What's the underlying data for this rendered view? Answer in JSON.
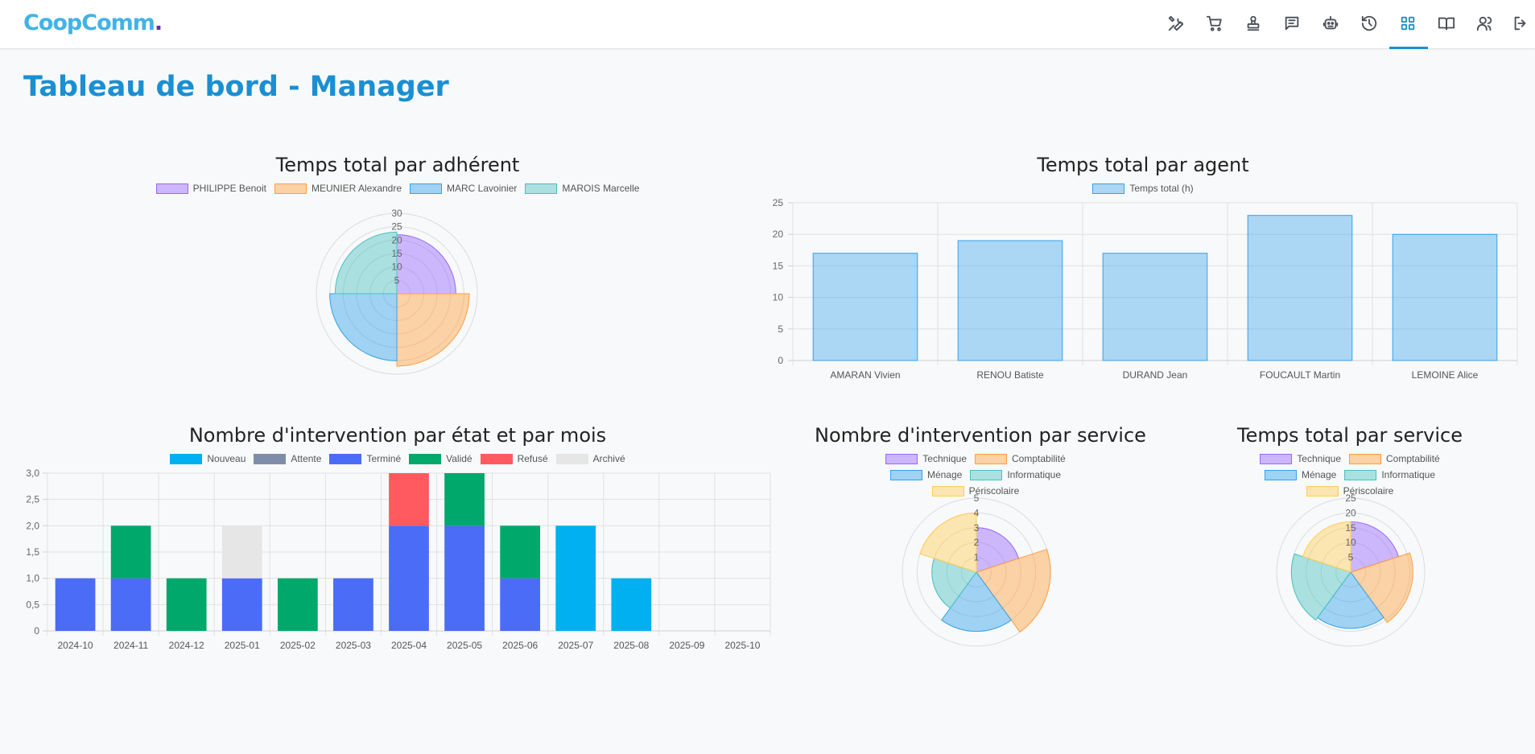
{
  "app": {
    "logo_part1": "Coop",
    "logo_part2": "Comm",
    "logo_dot": "."
  },
  "nav": {
    "icons": [
      {
        "name": "tools-icon"
      },
      {
        "name": "cart-icon"
      },
      {
        "name": "stamp-icon"
      },
      {
        "name": "message-icon"
      },
      {
        "name": "robot-icon"
      },
      {
        "name": "history-icon"
      },
      {
        "name": "dashboard-icon",
        "active": true
      },
      {
        "name": "book-icon"
      },
      {
        "name": "users-icon"
      },
      {
        "name": "logout-icon"
      }
    ],
    "active_color": "#1a8fd1"
  },
  "page": {
    "title": "Tableau de bord - Manager"
  },
  "chart_data": [
    {
      "id": "adherent",
      "type": "polarArea",
      "title": "Temps total par adhérent",
      "labels": [
        "PHILIPPE Benoit",
        "MEUNIER Alexandre",
        "MARC Lavoinier",
        "MAROIS Marcelle"
      ],
      "values": [
        22,
        27,
        25,
        23
      ],
      "colors": [
        "#9966ff",
        "#ff9f40",
        "#36a2eb",
        "#4bc0c0"
      ],
      "r_ticks": [
        5,
        10,
        15,
        20,
        25,
        30
      ],
      "r_max": 30
    },
    {
      "id": "agent",
      "type": "bar",
      "title": "Temps total par agent",
      "series": [
        {
          "name": "Temps total (h)",
          "values": [
            17,
            19,
            17,
            23,
            20
          ],
          "color": "#36a2eb"
        }
      ],
      "categories": [
        "AMARAN Vivien",
        "RENOU Batiste",
        "DURAND Jean",
        "FOUCAULT Martin",
        "LEMOINE Alice"
      ],
      "y_ticks": [
        "0",
        "5",
        "10",
        "15",
        "20",
        "25"
      ],
      "ylim": [
        0,
        25
      ]
    },
    {
      "id": "etat",
      "type": "bar",
      "stacked": true,
      "title": "Nombre d'intervention par état et par mois",
      "categories": [
        "2024-10",
        "2024-11",
        "2024-12",
        "2025-01",
        "2025-02",
        "2025-03",
        "2025-04",
        "2025-05",
        "2025-06",
        "2025-07",
        "2025-08",
        "2025-09",
        "2025-10"
      ],
      "series": [
        {
          "name": "Nouveau",
          "color": "#00b0f0",
          "values": [
            0,
            0,
            0,
            0,
            0,
            0,
            0,
            0,
            0,
            2,
            1,
            0,
            0
          ]
        },
        {
          "name": "Attente",
          "color": "#7f8ea8",
          "values": [
            0,
            0,
            0,
            0,
            0,
            0,
            0,
            0,
            0,
            0,
            0,
            0,
            0
          ]
        },
        {
          "name": "Terminé",
          "color": "#4a6cf7",
          "values": [
            1,
            1,
            0,
            1,
            0,
            1,
            2,
            2,
            1,
            0,
            0,
            0,
            0
          ]
        },
        {
          "name": "Validé",
          "color": "#00a86b",
          "values": [
            0,
            1,
            1,
            0,
            1,
            0,
            0,
            1,
            1,
            0,
            0,
            0,
            0
          ]
        },
        {
          "name": "Refusé",
          "color": "#ff5a5f",
          "values": [
            0,
            0,
            0,
            0,
            0,
            0,
            1,
            0,
            0,
            0,
            0,
            0,
            0
          ]
        },
        {
          "name": "Archivé",
          "color": "#e6e6e6",
          "values": [
            0,
            0,
            0,
            1,
            0,
            0,
            0,
            0,
            0,
            0,
            0,
            0,
            0
          ]
        }
      ],
      "y_ticks": [
        "0",
        "0,5",
        "1,0",
        "1,5",
        "2,0",
        "2,5",
        "3,0"
      ],
      "ylim": [
        0,
        3
      ]
    },
    {
      "id": "nb_service",
      "type": "polarArea",
      "title": "Nombre d'intervention par service",
      "labels": [
        "Technique",
        "Comptabilité",
        "Ménage",
        "Informatique",
        "Périscolaire"
      ],
      "values": [
        3,
        5,
        4,
        3,
        4
      ],
      "colors": [
        "#9966ff",
        "#ff9f40",
        "#36a2eb",
        "#4bc0c0",
        "#ffcd56"
      ],
      "r_ticks": [
        1,
        2,
        3,
        4,
        5
      ],
      "r_max": 5
    },
    {
      "id": "temps_service",
      "type": "polarArea",
      "title": "Temps total par service",
      "labels": [
        "Technique",
        "Comptabilité",
        "Ménage",
        "Informatique",
        "Périscolaire"
      ],
      "values": [
        17,
        21,
        19,
        20,
        17
      ],
      "colors": [
        "#9966ff",
        "#ff9f40",
        "#36a2eb",
        "#4bc0c0",
        "#ffcd56"
      ],
      "r_ticks": [
        5,
        10,
        15,
        20,
        25
      ],
      "r_max": 25
    }
  ]
}
